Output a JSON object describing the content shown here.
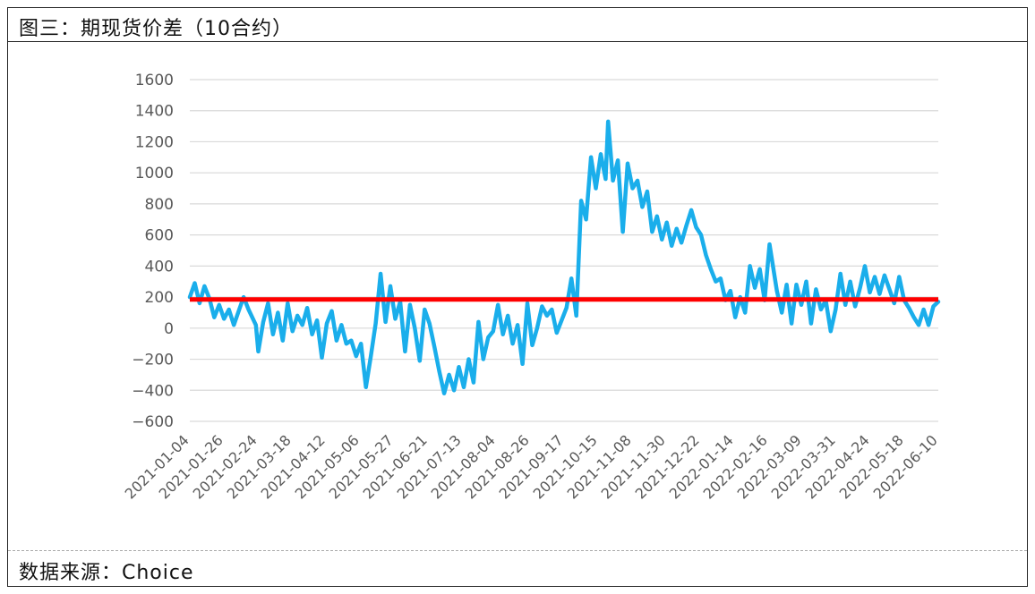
{
  "header": {
    "title": "图三：期现货价差（10合约）"
  },
  "footer": {
    "source": "数据来源：Choice"
  },
  "colors": {
    "series": "#1AAEEB",
    "reference": "#FF0000",
    "grid": "#d9d9d9",
    "tick": "#595959"
  },
  "chart_data": {
    "type": "line",
    "title": "",
    "xlabel": "",
    "ylabel": "",
    "ylim": [
      -600,
      1600
    ],
    "yticks": [
      1600,
      1400,
      1200,
      1000,
      800,
      600,
      400,
      200,
      0,
      -200,
      -400,
      -600
    ],
    "ytick_labels": [
      "1600",
      "1400",
      "1200",
      "1000",
      "800",
      "600",
      "400",
      "200",
      "0",
      "−200",
      "−400",
      "−600"
    ],
    "grid": true,
    "legend": "none",
    "x_tick_labels": [
      "2021-01-04",
      "2021-01-26",
      "2021-02-24",
      "2021-03-18",
      "2021-04-12",
      "2021-05-06",
      "2021-05-27",
      "2021-06-21",
      "2021-07-13",
      "2021-08-04",
      "2021-08-26",
      "2021-09-17",
      "2021-10-15",
      "2021-11-08",
      "2021-11-30",
      "2021-12-22",
      "2022-01-14",
      "2022-02-16",
      "2022-03-09",
      "2022-03-31",
      "2022-04-24",
      "2022-05-18",
      "2022-06-10"
    ],
    "series": [
      {
        "values": [
          {
            "x": 0,
            "y": 200
          },
          {
            "x": 0.2,
            "y": 290
          },
          {
            "x": 0.4,
            "y": 160
          },
          {
            "x": 0.6,
            "y": 270
          },
          {
            "x": 0.8,
            "y": 190
          },
          {
            "x": 1.0,
            "y": 70
          },
          {
            "x": 1.2,
            "y": 150
          },
          {
            "x": 1.4,
            "y": 60
          },
          {
            "x": 1.6,
            "y": 120
          },
          {
            "x": 1.8,
            "y": 20
          },
          {
            "x": 2.0,
            "y": 110
          },
          {
            "x": 2.2,
            "y": 200
          },
          {
            "x": 2.4,
            "y": 120
          },
          {
            "x": 2.7,
            "y": 20
          },
          {
            "x": 2.8,
            "y": -150
          },
          {
            "x": 3.0,
            "y": 40
          },
          {
            "x": 3.2,
            "y": 160
          },
          {
            "x": 3.4,
            "y": -40
          },
          {
            "x": 3.6,
            "y": 100
          },
          {
            "x": 3.8,
            "y": -80
          },
          {
            "x": 4.0,
            "y": 160
          },
          {
            "x": 4.2,
            "y": -20
          },
          {
            "x": 4.4,
            "y": 80
          },
          {
            "x": 4.6,
            "y": 20
          },
          {
            "x": 4.8,
            "y": 130
          },
          {
            "x": 5.0,
            "y": -40
          },
          {
            "x": 5.2,
            "y": 50
          },
          {
            "x": 5.4,
            "y": -190
          },
          {
            "x": 5.6,
            "y": 30
          },
          {
            "x": 5.8,
            "y": 110
          },
          {
            "x": 6.0,
            "y": -80
          },
          {
            "x": 6.2,
            "y": 20
          },
          {
            "x": 6.4,
            "y": -100
          },
          {
            "x": 6.6,
            "y": -80
          },
          {
            "x": 6.8,
            "y": -180
          },
          {
            "x": 7.0,
            "y": -100
          },
          {
            "x": 7.2,
            "y": -380
          },
          {
            "x": 7.4,
            "y": -180
          },
          {
            "x": 7.6,
            "y": 30
          },
          {
            "x": 7.8,
            "y": 350
          },
          {
            "x": 8.0,
            "y": 40
          },
          {
            "x": 8.2,
            "y": 270
          },
          {
            "x": 8.4,
            "y": 60
          },
          {
            "x": 8.6,
            "y": 170
          },
          {
            "x": 8.8,
            "y": -150
          },
          {
            "x": 9.0,
            "y": 150
          },
          {
            "x": 9.2,
            "y": 0
          },
          {
            "x": 9.4,
            "y": -210
          },
          {
            "x": 9.6,
            "y": 120
          },
          {
            "x": 9.8,
            "y": 30
          },
          {
            "x": 10.0,
            "y": -120
          },
          {
            "x": 10.2,
            "y": -280
          },
          {
            "x": 10.4,
            "y": -420
          },
          {
            "x": 10.6,
            "y": -300
          },
          {
            "x": 10.8,
            "y": -400
          },
          {
            "x": 11.0,
            "y": -250
          },
          {
            "x": 11.2,
            "y": -380
          },
          {
            "x": 11.4,
            "y": -200
          },
          {
            "x": 11.6,
            "y": -350
          },
          {
            "x": 11.8,
            "y": 40
          },
          {
            "x": 12.0,
            "y": -200
          },
          {
            "x": 12.2,
            "y": -60
          },
          {
            "x": 12.4,
            "y": -20
          },
          {
            "x": 12.6,
            "y": 150
          },
          {
            "x": 12.8,
            "y": -40
          },
          {
            "x": 13.0,
            "y": 80
          },
          {
            "x": 13.2,
            "y": -100
          },
          {
            "x": 13.4,
            "y": 20
          },
          {
            "x": 13.6,
            "y": -230
          },
          {
            "x": 13.8,
            "y": 160
          },
          {
            "x": 14.0,
            "y": -110
          },
          {
            "x": 14.2,
            "y": 0
          },
          {
            "x": 14.4,
            "y": 140
          },
          {
            "x": 14.6,
            "y": 80
          },
          {
            "x": 14.8,
            "y": 120
          },
          {
            "x": 15.0,
            "y": -30
          },
          {
            "x": 15.4,
            "y": 130
          },
          {
            "x": 15.6,
            "y": 320
          },
          {
            "x": 15.8,
            "y": 80
          },
          {
            "x": 16.0,
            "y": 820
          },
          {
            "x": 16.2,
            "y": 700
          },
          {
            "x": 16.4,
            "y": 1100
          },
          {
            "x": 16.6,
            "y": 900
          },
          {
            "x": 16.8,
            "y": 1120
          },
          {
            "x": 17.0,
            "y": 960
          },
          {
            "x": 17.1,
            "y": 1330
          },
          {
            "x": 17.3,
            "y": 950
          },
          {
            "x": 17.5,
            "y": 1080
          },
          {
            "x": 17.7,
            "y": 620
          },
          {
            "x": 17.9,
            "y": 1060
          },
          {
            "x": 18.1,
            "y": 900
          },
          {
            "x": 18.3,
            "y": 950
          },
          {
            "x": 18.5,
            "y": 780
          },
          {
            "x": 18.7,
            "y": 880
          },
          {
            "x": 18.9,
            "y": 620
          },
          {
            "x": 19.1,
            "y": 720
          },
          {
            "x": 19.3,
            "y": 570
          },
          {
            "x": 19.5,
            "y": 680
          },
          {
            "x": 19.7,
            "y": 530
          },
          {
            "x": 19.9,
            "y": 640
          },
          {
            "x": 20.1,
            "y": 550
          },
          {
            "x": 20.3,
            "y": 660
          },
          {
            "x": 20.5,
            "y": 760
          },
          {
            "x": 20.7,
            "y": 650
          },
          {
            "x": 20.9,
            "y": 600
          },
          {
            "x": 21.1,
            "y": 470
          },
          {
            "x": 21.3,
            "y": 380
          },
          {
            "x": 21.5,
            "y": 300
          },
          {
            "x": 21.7,
            "y": 320
          },
          {
            "x": 21.9,
            "y": 180
          },
          {
            "x": 22.1,
            "y": 240
          },
          {
            "x": 22.3,
            "y": 70
          },
          {
            "x": 22.5,
            "y": 200
          },
          {
            "x": 22.7,
            "y": 100
          },
          {
            "x": 22.9,
            "y": 400
          },
          {
            "x": 23.1,
            "y": 260
          },
          {
            "x": 23.3,
            "y": 380
          },
          {
            "x": 23.5,
            "y": 180
          },
          {
            "x": 23.7,
            "y": 540
          },
          {
            "x": 24.0,
            "y": 240
          },
          {
            "x": 24.2,
            "y": 100
          },
          {
            "x": 24.4,
            "y": 280
          },
          {
            "x": 24.6,
            "y": 30
          },
          {
            "x": 24.8,
            "y": 280
          },
          {
            "x": 25.0,
            "y": 150
          },
          {
            "x": 25.2,
            "y": 300
          },
          {
            "x": 25.4,
            "y": 30
          },
          {
            "x": 25.6,
            "y": 250
          },
          {
            "x": 25.8,
            "y": 120
          },
          {
            "x": 26.0,
            "y": 180
          },
          {
            "x": 26.2,
            "y": -20
          },
          {
            "x": 26.4,
            "y": 120
          },
          {
            "x": 26.6,
            "y": 350
          },
          {
            "x": 26.8,
            "y": 150
          },
          {
            "x": 27.0,
            "y": 300
          },
          {
            "x": 27.2,
            "y": 140
          },
          {
            "x": 27.4,
            "y": 260
          },
          {
            "x": 27.6,
            "y": 400
          },
          {
            "x": 27.8,
            "y": 230
          },
          {
            "x": 28.0,
            "y": 330
          },
          {
            "x": 28.2,
            "y": 220
          },
          {
            "x": 28.4,
            "y": 340
          },
          {
            "x": 28.6,
            "y": 250
          },
          {
            "x": 28.8,
            "y": 160
          },
          {
            "x": 29.0,
            "y": 330
          },
          {
            "x": 29.2,
            "y": 180
          },
          {
            "x": 29.4,
            "y": 130
          },
          {
            "x": 29.6,
            "y": 70
          },
          {
            "x": 29.8,
            "y": 20
          },
          {
            "x": 30.0,
            "y": 120
          },
          {
            "x": 30.2,
            "y": 20
          },
          {
            "x": 30.4,
            "y": 140
          },
          {
            "x": 30.6,
            "y": 170
          }
        ]
      },
      {
        "values": [
          {
            "x": 0,
            "y": 185
          },
          {
            "x": 30.6,
            "y": 185
          }
        ]
      }
    ]
  }
}
